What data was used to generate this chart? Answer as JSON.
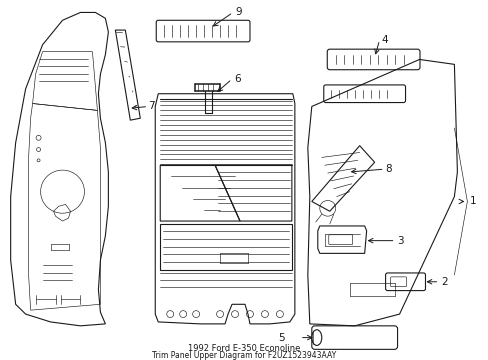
{
  "title": "1992 Ford E-350 Econoline",
  "subtitle": "Trim Panel Upper Diagram for F2UZ1523943AAY",
  "background_color": "#ffffff",
  "line_color": "#1a1a1a",
  "fig_width": 4.89,
  "fig_height": 3.6,
  "dpi": 100,
  "label_fontsize": 7.5,
  "title_fontsize": 6.0,
  "lw_main": 0.8,
  "lw_thin": 0.45,
  "lw_thick": 1.1
}
